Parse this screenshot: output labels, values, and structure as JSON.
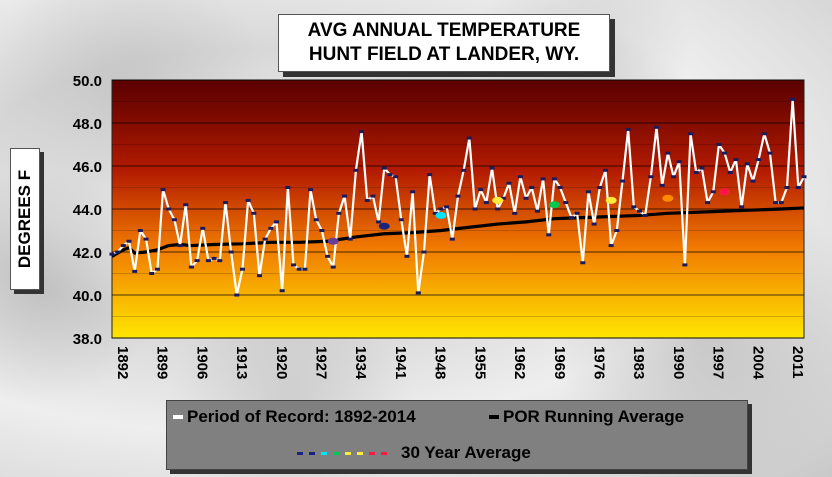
{
  "title": [
    "AVG ANNUAL  TEMPERATURE",
    "HUNT FIELD AT LANDER, WY."
  ],
  "ylabel": "DEGREES F",
  "legend": {
    "period": "Period of Record: 1892-2014",
    "running": "POR Running Average",
    "thirty": "30 Year Average",
    "thirty_colors": [
      "#1a237e",
      "#1a237e",
      "#00e5ff",
      "#00c853",
      "#ffeb3b",
      "#ffeb3b",
      "#ff1744",
      "#ff1744"
    ]
  },
  "chart_data": {
    "type": "line",
    "title": "AVG ANNUAL  TEMPERATURE HUNT FIELD AT LANDER, WY.",
    "ylabel": "DEGREES F",
    "ylim": [
      38.0,
      50.0
    ],
    "yticks": [
      "38.0",
      "40.0",
      "42.0",
      "44.0",
      "46.0",
      "48.0",
      "50.0"
    ],
    "xlim": [
      1892,
      2014
    ],
    "xticks": [
      "1892",
      "1899",
      "1906",
      "1913",
      "1920",
      "1927",
      "1934",
      "1941",
      "1948",
      "1955",
      "1962",
      "1969",
      "1976",
      "1983",
      "1990",
      "1997",
      "2004",
      "2011"
    ],
    "grid": true,
    "series": [
      {
        "name": "Period of Record: 1892-2014",
        "color": "#ffffff",
        "x": [
          1892,
          1893,
          1894,
          1895,
          1896,
          1897,
          1898,
          1899,
          1900,
          1901,
          1902,
          1903,
          1904,
          1905,
          1906,
          1907,
          1908,
          1909,
          1910,
          1911,
          1912,
          1913,
          1914,
          1915,
          1916,
          1917,
          1918,
          1919,
          1920,
          1921,
          1922,
          1923,
          1924,
          1925,
          1926,
          1927,
          1928,
          1929,
          1930,
          1931,
          1932,
          1933,
          1934,
          1935,
          1936,
          1937,
          1938,
          1939,
          1940,
          1941,
          1942,
          1943,
          1944,
          1945,
          1946,
          1947,
          1948,
          1949,
          1950,
          1951,
          1952,
          1953,
          1954,
          1955,
          1956,
          1957,
          1958,
          1959,
          1960,
          1961,
          1962,
          1963,
          1964,
          1965,
          1966,
          1967,
          1968,
          1969,
          1970,
          1971,
          1972,
          1973,
          1974,
          1975,
          1976,
          1977,
          1978,
          1979,
          1980,
          1981,
          1982,
          1983,
          1984,
          1985,
          1986,
          1987,
          1988,
          1989,
          1990,
          1991,
          1992,
          1993,
          1994,
          1995,
          1996,
          1997,
          1998,
          1999,
          2000,
          2001,
          2002,
          2003,
          2004,
          2005,
          2006,
          2007,
          2008,
          2009,
          2010,
          2011,
          2012,
          2013,
          2014
        ],
        "values": [
          41.9,
          42.0,
          42.3,
          42.5,
          41.1,
          43.0,
          42.6,
          41.0,
          41.2,
          44.9,
          44.0,
          43.5,
          42.3,
          44.2,
          41.3,
          41.6,
          43.1,
          41.6,
          41.7,
          41.6,
          44.3,
          42.0,
          40.0,
          41.2,
          44.4,
          43.8,
          40.9,
          42.6,
          43.1,
          43.4,
          40.2,
          45.0,
          41.4,
          41.2,
          41.2,
          44.9,
          43.5,
          43.0,
          41.8,
          41.3,
          43.8,
          44.6,
          42.6,
          45.8,
          47.6,
          44.4,
          44.6,
          43.4,
          45.9,
          45.6,
          45.5,
          43.5,
          41.8,
          44.8,
          40.1,
          42.0,
          45.6,
          43.8,
          44.0,
          44.1,
          42.6,
          44.6,
          45.8,
          47.3,
          44.0,
          44.9,
          44.3,
          45.9,
          44.0,
          44.5,
          45.2,
          43.8,
          45.5,
          44.5,
          45.0,
          43.9,
          45.4,
          42.8,
          45.4,
          45.0,
          44.3,
          43.6,
          43.8,
          41.5,
          44.8,
          43.3,
          45.0,
          45.8,
          42.3,
          43.0,
          45.3,
          47.7,
          44.1,
          43.9,
          43.7,
          45.5,
          47.8,
          45.1,
          46.6,
          45.5,
          46.2,
          41.4,
          47.5,
          45.7,
          45.9,
          44.3,
          44.8,
          47.0,
          46.6,
          45.7,
          46.3,
          44.1,
          46.1,
          45.3,
          46.3,
          47.5,
          46.6,
          44.3,
          44.3,
          45.0,
          49.1,
          45.0,
          45.5
        ]
      },
      {
        "name": "POR Running Average",
        "color": "#000000",
        "x": [
          1892,
          1893,
          1894,
          1895,
          1896,
          1898,
          1900,
          1902,
          1904,
          1906,
          1910,
          1915,
          1920,
          1925,
          1930,
          1935,
          1940,
          1945,
          1950,
          1955,
          1960,
          1965,
          1970,
          1975,
          1980,
          1985,
          1990,
          1995,
          2000,
          2005,
          2010,
          2014
        ],
        "values": [
          41.8,
          41.95,
          42.1,
          42.2,
          41.95,
          42.0,
          42.1,
          42.3,
          42.35,
          42.3,
          42.35,
          42.38,
          42.45,
          42.45,
          42.5,
          42.7,
          42.85,
          42.9,
          43.0,
          43.15,
          43.3,
          43.4,
          43.55,
          43.6,
          43.65,
          43.7,
          43.8,
          43.85,
          43.9,
          43.95,
          44.0,
          44.05
        ]
      },
      {
        "name": "30 Year Average",
        "points": [
          {
            "x": 1931,
            "y": 42.5,
            "color": "#6a3d9a"
          },
          {
            "x": 1940,
            "y": 43.2,
            "color": "#1a237e"
          },
          {
            "x": 1950,
            "y": 43.7,
            "color": "#00e5ff"
          },
          {
            "x": 1960,
            "y": 44.4,
            "color": "#ffeb3b"
          },
          {
            "x": 1970,
            "y": 44.2,
            "color": "#00c853"
          },
          {
            "x": 1980,
            "y": 44.4,
            "color": "#ffeb3b"
          },
          {
            "x": 1990,
            "y": 44.5,
            "color": "#ff8c00"
          },
          {
            "x": 2000,
            "y": 44.8,
            "color": "#ff1744"
          }
        ]
      }
    ]
  }
}
